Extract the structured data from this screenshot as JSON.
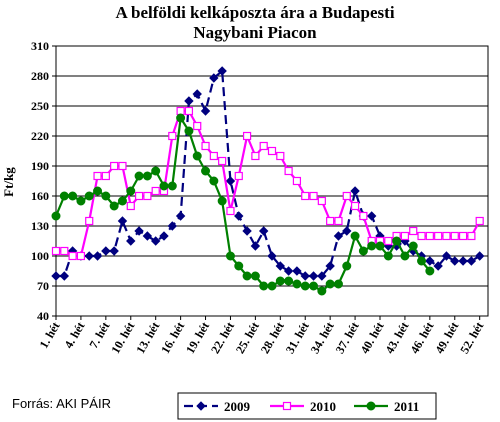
{
  "chart_data": {
    "type": "line",
    "title_lines": [
      "A belföldi kelkáposzta ára a Budapesti",
      "Nagybani Piacon"
    ],
    "ylabel": "Ft/kg",
    "xlabel": "",
    "ylim": [
      40,
      310
    ],
    "yticks": [
      40,
      70,
      100,
      130,
      160,
      190,
      220,
      250,
      280,
      310
    ],
    "x_tick_labels": [
      "1. hét",
      "4. hét",
      "7. hét",
      "10. hét",
      "13. hét",
      "16. hét",
      "19. hét",
      "22. hét",
      "25. hét",
      "28. hét",
      "31. hét",
      "34. hét",
      "37. hét",
      "40. hét",
      "43. hét",
      "46. hét",
      "49. hét",
      "52. hét"
    ],
    "x_tick_weeks": [
      1,
      4,
      7,
      10,
      13,
      16,
      19,
      22,
      25,
      28,
      31,
      34,
      37,
      40,
      43,
      46,
      49,
      52
    ],
    "grid": "horizontal",
    "legend_position": "bottom",
    "source": "Forrás: AKI PÁIR",
    "series": [
      {
        "name": "2009",
        "color": "#00007f",
        "dash": "dashed",
        "marker": "diamond",
        "x": [
          1,
          2,
          3,
          4,
          5,
          6,
          7,
          8,
          9,
          10,
          11,
          12,
          13,
          14,
          15,
          16,
          17,
          18,
          19,
          20,
          21,
          22,
          23,
          24,
          25,
          26,
          27,
          28,
          29,
          30,
          31,
          32,
          33,
          34,
          35,
          36,
          37,
          38,
          39,
          40,
          41,
          42,
          43,
          44,
          45,
          46,
          47,
          48,
          49,
          50,
          51,
          52
        ],
        "values": [
          80,
          80,
          105,
          100,
          100,
          100,
          105,
          105,
          135,
          115,
          125,
          120,
          115,
          120,
          130,
          140,
          255,
          262,
          245,
          278,
          285,
          175,
          140,
          125,
          110,
          125,
          100,
          90,
          85,
          85,
          80,
          80,
          80,
          90,
          120,
          125,
          165,
          140,
          140,
          120,
          110,
          110,
          115,
          105,
          100,
          95,
          90,
          100,
          95,
          95,
          95,
          100
        ]
      },
      {
        "name": "2010",
        "color": "#ff00ff",
        "dash": "solid",
        "marker": "square",
        "x": [
          1,
          2,
          3,
          4,
          5,
          6,
          7,
          8,
          9,
          10,
          11,
          12,
          13,
          14,
          15,
          16,
          17,
          18,
          19,
          20,
          21,
          22,
          23,
          24,
          25,
          26,
          27,
          28,
          29,
          30,
          31,
          32,
          33,
          34,
          35,
          36,
          37,
          38,
          39,
          40,
          41,
          42,
          43,
          44,
          45,
          46,
          47,
          48,
          49,
          50,
          51,
          52
        ],
        "values": [
          105,
          105,
          100,
          100,
          135,
          180,
          180,
          190,
          190,
          150,
          160,
          160,
          165,
          165,
          220,
          245,
          245,
          230,
          210,
          200,
          195,
          145,
          180,
          220,
          200,
          210,
          205,
          200,
          185,
          175,
          160,
          160,
          155,
          135,
          135,
          160,
          150,
          140,
          115,
          115,
          115,
          120,
          120,
          125,
          120,
          120,
          120,
          120,
          120,
          120,
          120,
          135
        ]
      },
      {
        "name": "2011",
        "color": "#008000",
        "dash": "solid",
        "marker": "circle",
        "x": [
          1,
          2,
          3,
          4,
          5,
          6,
          7,
          8,
          9,
          10,
          11,
          12,
          13,
          14,
          15,
          16,
          17,
          18,
          19,
          20,
          21,
          22,
          23,
          24,
          25,
          26,
          27,
          28,
          29,
          30,
          31,
          32,
          33,
          34,
          35,
          36,
          37,
          38,
          39,
          40,
          41,
          42,
          43,
          44,
          45,
          46
        ],
        "values": [
          140,
          160,
          160,
          155,
          160,
          165,
          160,
          150,
          155,
          165,
          180,
          180,
          185,
          170,
          170,
          238,
          225,
          200,
          185,
          175,
          155,
          100,
          90,
          80,
          80,
          70,
          70,
          75,
          75,
          72,
          70,
          70,
          65,
          72,
          72,
          90,
          120,
          105,
          110,
          110,
          100,
          115,
          100,
          110,
          95,
          85
        ]
      }
    ]
  }
}
